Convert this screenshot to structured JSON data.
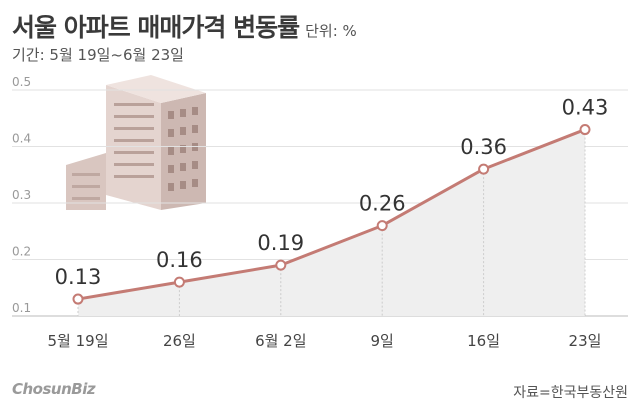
{
  "header": {
    "title": "서울 아파트 매매가격 변동률",
    "unit": "단위: %",
    "period": "기간: 5월 19일~6월 23일"
  },
  "footer": {
    "logo": "ChosunBiz",
    "source": "자료=한국부동산원"
  },
  "colors": {
    "line": "#c47b74",
    "area": "#efefef",
    "marker_fill": "#ffffff",
    "label": "#333333"
  },
  "chart_data": {
    "type": "line",
    "categories": [
      "5월 19일",
      "26일",
      "6월 2일",
      "9일",
      "16일",
      "23일"
    ],
    "values": [
      0.13,
      0.16,
      0.19,
      0.26,
      0.36,
      0.43
    ],
    "data_labels": [
      "0.13",
      "0.16",
      "0.19",
      "0.26",
      "0.36",
      "0.43"
    ],
    "yticks": [
      "0.1",
      "0.2",
      "0.3",
      "0.4",
      "0.5"
    ],
    "ylim": [
      0.1,
      0.5
    ],
    "grid": true,
    "area_fill": true
  }
}
